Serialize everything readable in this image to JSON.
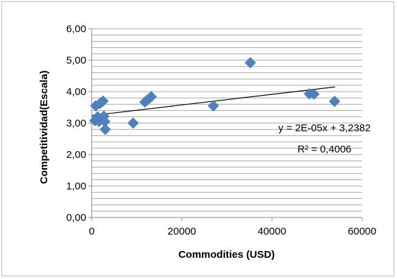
{
  "chart_data": {
    "type": "scatter",
    "title": "",
    "xlabel": "Commodities (USD)",
    "ylabel": "Competitividad(Escala)",
    "xlim": [
      0,
      60000
    ],
    "ylim": [
      0,
      6
    ],
    "x_ticks": [
      "0",
      "20000",
      "40000",
      "60000"
    ],
    "y_ticks": [
      "0,00",
      "1,00",
      "2,00",
      "3,00",
      "4,00",
      "5,00",
      "6,00"
    ],
    "grid": "horizontal major and minor",
    "legend": "none",
    "marker_color": "#4f81bd",
    "trendline_color": "#000000",
    "series": [
      {
        "points": [
          {
            "x": 700,
            "y": 3.08
          },
          {
            "x": 900,
            "y": 3.55
          },
          {
            "x": 1300,
            "y": 3.2
          },
          {
            "x": 1600,
            "y": 3.05
          },
          {
            "x": 1800,
            "y": 3.62
          },
          {
            "x": 2200,
            "y": 3.15
          },
          {
            "x": 2500,
            "y": 3.7
          },
          {
            "x": 2700,
            "y": 3.22
          },
          {
            "x": 2900,
            "y": 3.05
          },
          {
            "x": 3000,
            "y": 2.8
          },
          {
            "x": 9200,
            "y": 3.0
          },
          {
            "x": 11800,
            "y": 3.67
          },
          {
            "x": 12500,
            "y": 3.75
          },
          {
            "x": 13200,
            "y": 3.84
          },
          {
            "x": 27000,
            "y": 3.55
          },
          {
            "x": 35200,
            "y": 4.92
          },
          {
            "x": 48300,
            "y": 3.93
          },
          {
            "x": 49300,
            "y": 3.92
          },
          {
            "x": 53900,
            "y": 3.69
          }
        ]
      }
    ],
    "trendline": {
      "type": "linear",
      "x_range": [
        0,
        54000
      ],
      "y_at_start": 3.24,
      "y_at_end": 4.15,
      "equation_label": "y = 2E-05x + 3,2382",
      "r2_label": "R² = 0,4006"
    }
  }
}
